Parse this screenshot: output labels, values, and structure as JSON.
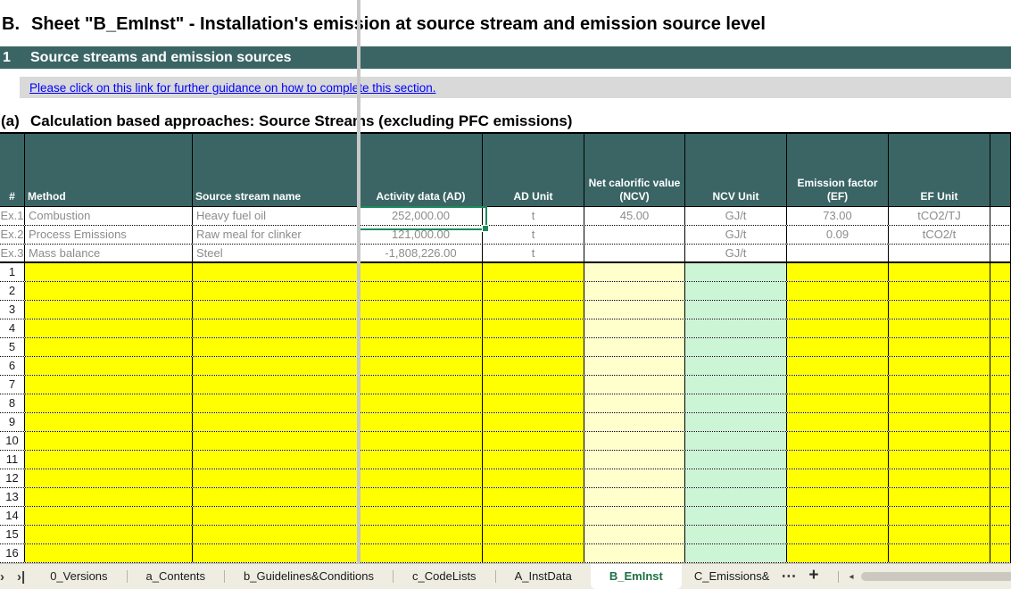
{
  "title": {
    "prefix": "B.",
    "text": "Sheet \"B_EmInst\" - Installation's emission at source stream and emission source level"
  },
  "section": {
    "number": "1",
    "label": "Source streams and emission sources"
  },
  "guidance": {
    "link_text": "Please click on this link for further guidance on how to complete this section."
  },
  "subsection": {
    "prefix": "(a)",
    "label": "Calculation based approaches: Source Streams (excluding PFC emissions)"
  },
  "table": {
    "headers": {
      "num": "#",
      "method": "Method",
      "source": "Source stream name",
      "ad": "Activity data (AD)",
      "ad_unit": "AD Unit",
      "ncv": "Net calorific value (NCV)",
      "ncv_unit": "NCV Unit",
      "ef": "Emission factor (EF)",
      "ef_unit": "EF Unit"
    },
    "example_rows": [
      {
        "num": "Ex.1",
        "method": "Combustion",
        "source": "Heavy fuel oil",
        "ad": "252,000.00",
        "ad_unit": "t",
        "ncv": "45.00",
        "ncv_unit": "GJ/t",
        "ef": "73.00",
        "ef_unit": "tCO2/TJ"
      },
      {
        "num": "Ex.2",
        "method": "Process Emissions",
        "source": "Raw meal for clinker",
        "ad": "121,000.00",
        "ad_unit": "t",
        "ncv": "",
        "ncv_unit": "GJ/t",
        "ef": "0.09",
        "ef_unit": "tCO2/t"
      },
      {
        "num": "Ex.3",
        "method": "Mass balance",
        "source": "Steel",
        "ad": "-1,808,226.00",
        "ad_unit": "t",
        "ncv": "",
        "ncv_unit": "GJ/t",
        "ef": "",
        "ef_unit": ""
      }
    ],
    "empty_rows": [
      "1",
      "2",
      "3",
      "4",
      "5",
      "6",
      "7",
      "8",
      "9",
      "10",
      "11",
      "12",
      "13",
      "14",
      "15",
      "16"
    ],
    "selected_cell_value": "252,000.00"
  },
  "tabbar": {
    "nav_next": "›",
    "nav_last": "›|",
    "tabs": [
      {
        "label": "0_Versions",
        "active": false
      },
      {
        "label": "a_Contents",
        "active": false
      },
      {
        "label": "b_Guidelines&Conditions",
        "active": false
      },
      {
        "label": "c_CodeLists",
        "active": false
      },
      {
        "label": "A_InstData",
        "active": false
      },
      {
        "label": "B_EmInst",
        "active": true
      },
      {
        "label": "C_Emissions&",
        "active": false
      }
    ],
    "more_tabs": "⋯",
    "add_sheet": "+",
    "scroll_left": "◂"
  },
  "colors": {
    "header_teal": "#3B6565",
    "input_yellow": "#FFFF00",
    "input_cream": "#FFFFCC",
    "input_mint": "#CCF5D6",
    "band_gray": "#D9D9D9",
    "link_blue": "#0000FF",
    "example_text_gray": "#8C8C8C",
    "selection_green": "#1C8A5C",
    "active_tab_green": "#1E7044"
  }
}
